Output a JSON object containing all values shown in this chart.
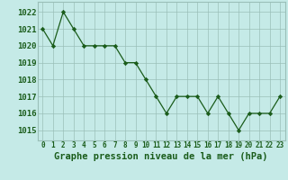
{
  "x": [
    0,
    1,
    2,
    3,
    4,
    5,
    6,
    7,
    8,
    9,
    10,
    11,
    12,
    13,
    14,
    15,
    16,
    17,
    18,
    19,
    20,
    21,
    22,
    23
  ],
  "y": [
    1021,
    1020,
    1022,
    1021,
    1020,
    1020,
    1020,
    1020,
    1019,
    1019,
    1018,
    1017,
    1016,
    1017,
    1017,
    1017,
    1016,
    1017,
    1016,
    1015,
    1016,
    1016,
    1016,
    1017
  ],
  "line_color": "#1a5c1a",
  "marker": "D",
  "marker_size": 2.2,
  "bg_color": "#c5eae7",
  "grid_color": "#9abfb8",
  "xlabel": "Graphe pression niveau de la mer (hPa)",
  "xlabel_fontsize": 7.5,
  "ylabel_ticks": [
    1015,
    1016,
    1017,
    1018,
    1019,
    1020,
    1021,
    1022
  ],
  "ylim": [
    1014.4,
    1022.6
  ],
  "xlim": [
    -0.5,
    23.5
  ],
  "xtick_labels": [
    "0",
    "1",
    "2",
    "3",
    "4",
    "5",
    "6",
    "7",
    "8",
    "9",
    "10",
    "11",
    "12",
    "13",
    "14",
    "15",
    "16",
    "17",
    "18",
    "19",
    "20",
    "21",
    "22",
    "23"
  ]
}
